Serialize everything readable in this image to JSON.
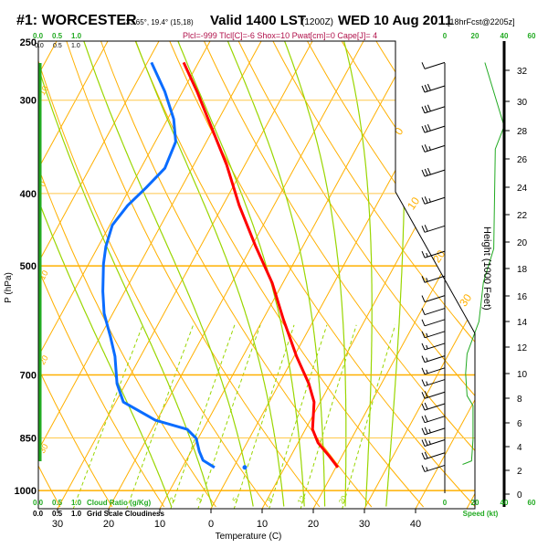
{
  "header": {
    "station": "#1: WORCESTER",
    "coords": "-33.65°, 19.4° (15,18)",
    "valid": "Valid 1400 LST",
    "utc": "(1200Z)",
    "date": "WED 10 Aug 2011",
    "forecast": "[18hrFcst@2205z]",
    "indices": "Plcl=-999 Tlcl[C]=-6 Shox=10 Pwat[cm]=0 Cape[J]= 4"
  },
  "cloud_axis": {
    "top_green": [
      "0.0",
      "0.5",
      "1.0"
    ],
    "top_black": [
      "0.0",
      "0.5",
      "1.0"
    ],
    "bottom_green": [
      "0.0",
      "0.5",
      "1.0"
    ],
    "bottom_black": [
      "0.0",
      "0.5",
      "1.0"
    ],
    "cloud_ratio_label": "Cloud Ratio (g/Kg)",
    "grid_cloudiness_label": "Grid Scale Cloudiness"
  },
  "speed_axis": {
    "ticks": [
      "0",
      "20",
      "40",
      "60"
    ],
    "label": "Speed (kt)"
  },
  "height_axis": {
    "label": "Height (1000 Feet)",
    "ticks": [
      "0",
      "2",
      "4",
      "6",
      "8",
      "10",
      "12",
      "14",
      "16",
      "18",
      "20",
      "22",
      "24",
      "26",
      "28",
      "30",
      "32"
    ]
  },
  "colors": {
    "temperature": "#ff0000",
    "dewpoint": "#0a6cff",
    "isotherm": "#ffb000",
    "moist": "#99d600",
    "speed": "#22aa22",
    "indices": "#b0104a"
  },
  "chart_data": {
    "type": "skew-t",
    "title": "#1: WORCESTER Valid 1400 LST WED 10 Aug 2011",
    "xlabel": "Temperature (C)",
    "ylabel": "P (hPa)",
    "pressure_ticks": [
      "250",
      "300",
      "400",
      "500",
      "700",
      "850",
      "1000"
    ],
    "pressure_values": [
      250,
      300,
      400,
      500,
      700,
      850,
      1000
    ],
    "temperature_ticks": [
      "30",
      "20",
      "10",
      "0",
      "10",
      "20",
      "30",
      "40"
    ],
    "temperature_values": [
      -30,
      -20,
      -10,
      0,
      10,
      20,
      30,
      40
    ],
    "isotherm_labels": [
      "0",
      "10",
      "20",
      "30"
    ],
    "isotherm_label_values": [
      0,
      10,
      20,
      30
    ],
    "left_labels": [
      "10",
      "0",
      "10",
      "20",
      "30"
    ],
    "mixing_ratio_labels": [
      "2",
      "3",
      "5",
      "8",
      "12",
      "20"
    ],
    "mixing_ratio_values": [
      2,
      3,
      5,
      8,
      12,
      20
    ],
    "temperature_profile": [
      {
        "p": 267,
        "t": -52.9
      },
      {
        "p": 292,
        "t": -47.2
      },
      {
        "p": 327,
        "t": -40.4
      },
      {
        "p": 366,
        "t": -33.6
      },
      {
        "p": 415,
        "t": -26.8
      },
      {
        "p": 471,
        "t": -19.2
      },
      {
        "p": 527,
        "t": -12.1
      },
      {
        "p": 590,
        "t": -6.0
      },
      {
        "p": 661,
        "t": 0.5
      },
      {
        "p": 719,
        "t": 5.8
      },
      {
        "p": 761,
        "t": 8.8
      },
      {
        "p": 828,
        "t": 11.4
      },
      {
        "p": 863,
        "t": 13.9
      },
      {
        "p": 899,
        "t": 17.5
      },
      {
        "p": 931,
        "t": 20.4
      }
    ],
    "dewpoint_profile": [
      {
        "p": 267,
        "t": -59.2
      },
      {
        "p": 292,
        "t": -53.5
      },
      {
        "p": 318,
        "t": -48.8
      },
      {
        "p": 341,
        "t": -46.0
      },
      {
        "p": 370,
        "t": -45.3
      },
      {
        "p": 393,
        "t": -46.9
      },
      {
        "p": 415,
        "t": -48.6
      },
      {
        "p": 441,
        "t": -49.5
      },
      {
        "p": 471,
        "t": -48.5
      },
      {
        "p": 497,
        "t": -47.1
      },
      {
        "p": 541,
        "t": -44.3
      },
      {
        "p": 579,
        "t": -41.7
      },
      {
        "p": 622,
        "t": -38.0
      },
      {
        "p": 661,
        "t": -35.0
      },
      {
        "p": 719,
        "t": -31.7
      },
      {
        "p": 761,
        "t": -28.5
      },
      {
        "p": 805,
        "t": -20.3
      },
      {
        "p": 828,
        "t": -13.1
      },
      {
        "p": 851,
        "t": -10.4
      },
      {
        "p": 886,
        "t": -8.4
      },
      {
        "p": 911,
        "t": -6.7
      },
      {
        "p": 931,
        "t": -3.7
      }
    ],
    "surface_point": {
      "p": 931,
      "t": 2.2
    },
    "wind_speed_profile_kt": [
      {
        "h_kft": 2.5,
        "kt": 12
      },
      {
        "h_kft": 2.8,
        "kt": 18
      },
      {
        "h_kft": 4.6,
        "kt": 19
      },
      {
        "h_kft": 7.4,
        "kt": 19
      },
      {
        "h_kft": 8.2,
        "kt": 15
      },
      {
        "h_kft": 10,
        "kt": 14
      },
      {
        "h_kft": 11.5,
        "kt": 15
      },
      {
        "h_kft": 14,
        "kt": 23
      },
      {
        "h_kft": 17,
        "kt": 26
      },
      {
        "h_kft": 19.5,
        "kt": 33
      },
      {
        "h_kft": 26.7,
        "kt": 34
      },
      {
        "h_kft": 28.3,
        "kt": 40
      },
      {
        "h_kft": 32.5,
        "kt": 27
      }
    ],
    "wind_barbs": [
      {
        "p": 267,
        "kt": 10
      },
      {
        "p": 287,
        "kt": 30
      },
      {
        "p": 306,
        "kt": 30
      },
      {
        "p": 325,
        "kt": 30
      },
      {
        "p": 345,
        "kt": 25
      },
      {
        "p": 372,
        "kt": 30
      },
      {
        "p": 405,
        "kt": 25
      },
      {
        "p": 442,
        "kt": 20
      },
      {
        "p": 478,
        "kt": 15
      },
      {
        "p": 516,
        "kt": 15
      },
      {
        "p": 548,
        "kt": 10
      },
      {
        "p": 570,
        "kt": 10
      },
      {
        "p": 590,
        "kt": 10
      },
      {
        "p": 612,
        "kt": 15
      },
      {
        "p": 635,
        "kt": 15
      },
      {
        "p": 660,
        "kt": 15
      },
      {
        "p": 685,
        "kt": 15
      },
      {
        "p": 710,
        "kt": 15
      },
      {
        "p": 738,
        "kt": 20
      },
      {
        "p": 765,
        "kt": 20
      },
      {
        "p": 795,
        "kt": 20
      },
      {
        "p": 825,
        "kt": 25
      },
      {
        "p": 855,
        "kt": 25
      },
      {
        "p": 890,
        "kt": 20
      },
      {
        "p": 925,
        "kt": 15
      }
    ]
  }
}
